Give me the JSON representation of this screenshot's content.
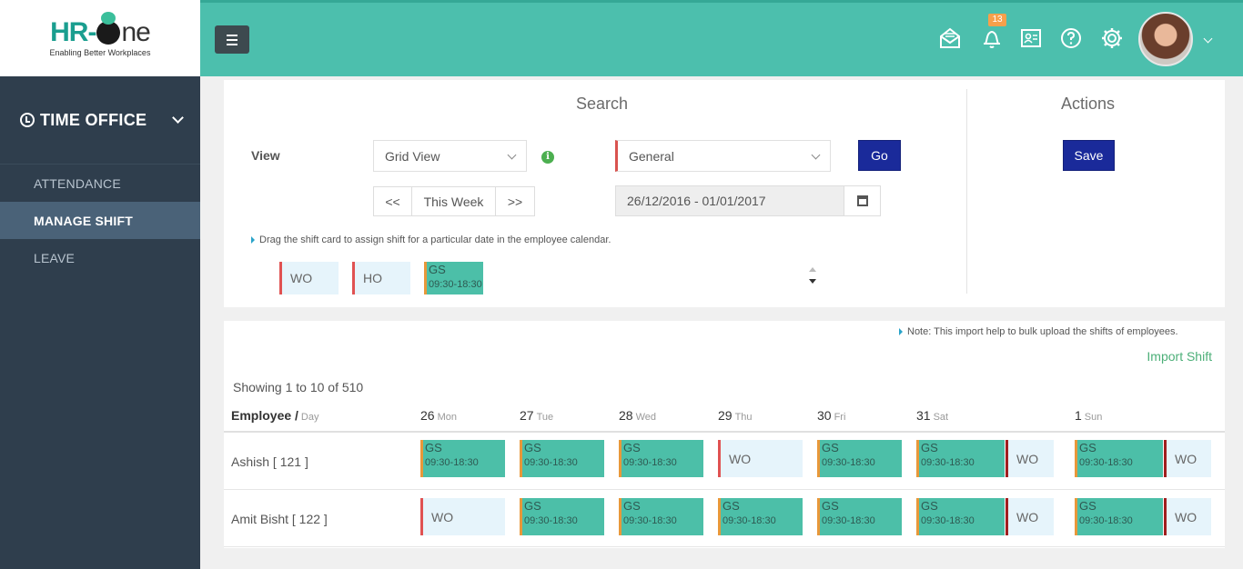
{
  "brand": {
    "logo_hr": "HR-",
    "logo_one": "ne",
    "tagline": "Enabling Better Workplaces"
  },
  "sidebar": {
    "module": "TIME OFFICE",
    "items": [
      {
        "label": "ATTENDANCE",
        "active": false
      },
      {
        "label": "MANAGE SHIFT",
        "active": true
      },
      {
        "label": "LEAVE",
        "active": false
      }
    ]
  },
  "header": {
    "notifications_count": "13",
    "icons": [
      "mail-icon",
      "bell-icon",
      "id-card-icon",
      "help-icon",
      "gear-icon"
    ]
  },
  "search": {
    "title": "Search",
    "view_label": "View",
    "view_value": "Grid View",
    "shift_group_value": "General",
    "go_label": "Go",
    "prev_label": "<<",
    "week_label": "This Week",
    "next_label": ">>",
    "date_range": "26/12/2016 - 01/01/2017",
    "hint": "Drag the shift card to assign shift for a particular date in the employee calendar.",
    "cards": [
      {
        "code": "WO",
        "type": "off"
      },
      {
        "code": "HO",
        "type": "off"
      },
      {
        "code": "GS",
        "time": "09:30-18:30",
        "type": "shift"
      }
    ]
  },
  "actions": {
    "title": "Actions",
    "save_label": "Save"
  },
  "grid": {
    "note": "Note: This import help to bulk upload the shifts of employees.",
    "import_label": "Import Shift",
    "showing": "Showing 1 to 10 of 510",
    "employee_header": "Employee /",
    "employee_header_sub": "Day",
    "days": [
      {
        "num": "26",
        "name": "Mon"
      },
      {
        "num": "27",
        "name": "Tue"
      },
      {
        "num": "28",
        "name": "Wed"
      },
      {
        "num": "29",
        "name": "Thu"
      },
      {
        "num": "30",
        "name": "Fri"
      },
      {
        "num": "31",
        "name": "Sat"
      },
      {
        "num": "1",
        "name": "Sun"
      }
    ],
    "shift_code": "GS",
    "shift_time": "09:30-18:30",
    "off_code": "WO",
    "rows": [
      {
        "name": "Ashish [ 121 ]",
        "shifts": [
          "GS",
          "GS",
          "GS",
          "WO",
          "GS",
          "GS+WO",
          "GS+WO"
        ]
      },
      {
        "name": "Amit Bisht [ 122 ]",
        "shifts": [
          "WO",
          "GS",
          "GS",
          "GS",
          "GS",
          "GS+WO",
          "GS+WO"
        ]
      }
    ]
  }
}
